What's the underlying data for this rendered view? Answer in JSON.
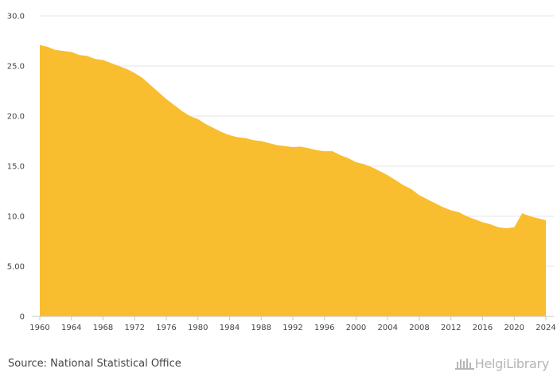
{
  "chart_data": {
    "type": "area",
    "color": "#f9bd30",
    "grid": true,
    "ylim": [
      0,
      30
    ],
    "xlim": [
      1960,
      2024
    ],
    "y_ticks": [
      0,
      5,
      10,
      15,
      20,
      25,
      30
    ],
    "y_tick_labels": [
      "0",
      "5.00",
      "10.0",
      "15.0",
      "20.0",
      "25.0",
      "30.0"
    ],
    "x_ticks": [
      1960,
      1964,
      1968,
      1972,
      1976,
      1980,
      1984,
      1988,
      1992,
      1996,
      2000,
      2004,
      2008,
      2012,
      2016,
      2020,
      2024
    ],
    "x_tick_labels": [
      "1960",
      "1964",
      "1968",
      "1972",
      "1976",
      "1980",
      "1984",
      "1988",
      "1992",
      "1996",
      "2000",
      "2004",
      "2008",
      "2012",
      "2016",
      "2020",
      "2024"
    ],
    "x": [
      1960,
      1961,
      1962,
      1963,
      1964,
      1965,
      1966,
      1967,
      1968,
      1969,
      1970,
      1971,
      1972,
      1973,
      1974,
      1975,
      1976,
      1977,
      1978,
      1979,
      1980,
      1981,
      1982,
      1983,
      1984,
      1985,
      1986,
      1987,
      1988,
      1989,
      1990,
      1991,
      1992,
      1993,
      1994,
      1995,
      1996,
      1997,
      1998,
      1999,
      2000,
      2001,
      2002,
      2003,
      2004,
      2005,
      2006,
      2007,
      2008,
      2009,
      2010,
      2011,
      2012,
      2013,
      2014,
      2015,
      2016,
      2017,
      2018,
      2019,
      2020,
      2021,
      2022,
      2023,
      2024
    ],
    "values": [
      27.1,
      26.9,
      26.6,
      26.5,
      26.4,
      26.1,
      26.0,
      25.7,
      25.6,
      25.3,
      25.0,
      24.7,
      24.3,
      23.8,
      23.1,
      22.4,
      21.7,
      21.1,
      20.5,
      20.0,
      19.7,
      19.2,
      18.8,
      18.4,
      18.1,
      17.9,
      17.8,
      17.6,
      17.5,
      17.3,
      17.1,
      17.0,
      16.9,
      16.95,
      16.8,
      16.6,
      16.5,
      16.5,
      16.1,
      15.8,
      15.4,
      15.2,
      14.9,
      14.5,
      14.1,
      13.6,
      13.1,
      12.7,
      12.1,
      11.7,
      11.3,
      10.9,
      10.6,
      10.4,
      10.0,
      9.7,
      9.4,
      9.2,
      8.9,
      8.8,
      8.9,
      10.3,
      10.0,
      9.8,
      9.6
    ]
  },
  "footer": {
    "source": "Source: National Statistical Office",
    "brand": "HelgiLibrary"
  }
}
